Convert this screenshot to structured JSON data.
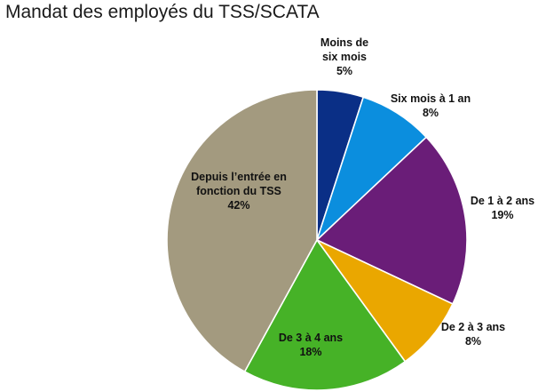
{
  "chart_data": {
    "type": "pie",
    "title": "Mandat des employés du TSS/SCATA",
    "start_angle_deg": 0,
    "direction": "clockwise",
    "legend": "none",
    "slices": [
      {
        "lines": [
          "Moins de",
          "six mois"
        ],
        "value": 5,
        "display": "5%",
        "color": "#0a2f86",
        "label_position": "outside"
      },
      {
        "lines": [
          "Six mois à 1 an"
        ],
        "value": 8,
        "display": "8%",
        "color": "#0b8ede",
        "label_position": "outside"
      },
      {
        "lines": [
          "De 1 à 2 ans"
        ],
        "value": 19,
        "display": "19%",
        "color": "#6a1d78",
        "label_position": "outside"
      },
      {
        "lines": [
          "De 2 à 3 ans"
        ],
        "value": 8,
        "display": "8%",
        "color": "#eaa700",
        "label_position": "outside"
      },
      {
        "lines": [
          "De 3 à 4 ans"
        ],
        "value": 18,
        "display": "18%",
        "color": "#46b227",
        "label_position": "inside"
      },
      {
        "lines": [
          "Depuis l’entrée en",
          "fonction du TSS"
        ],
        "value": 42,
        "display": "42%",
        "color": "#a39a7f",
        "label_position": "inside"
      }
    ]
  }
}
